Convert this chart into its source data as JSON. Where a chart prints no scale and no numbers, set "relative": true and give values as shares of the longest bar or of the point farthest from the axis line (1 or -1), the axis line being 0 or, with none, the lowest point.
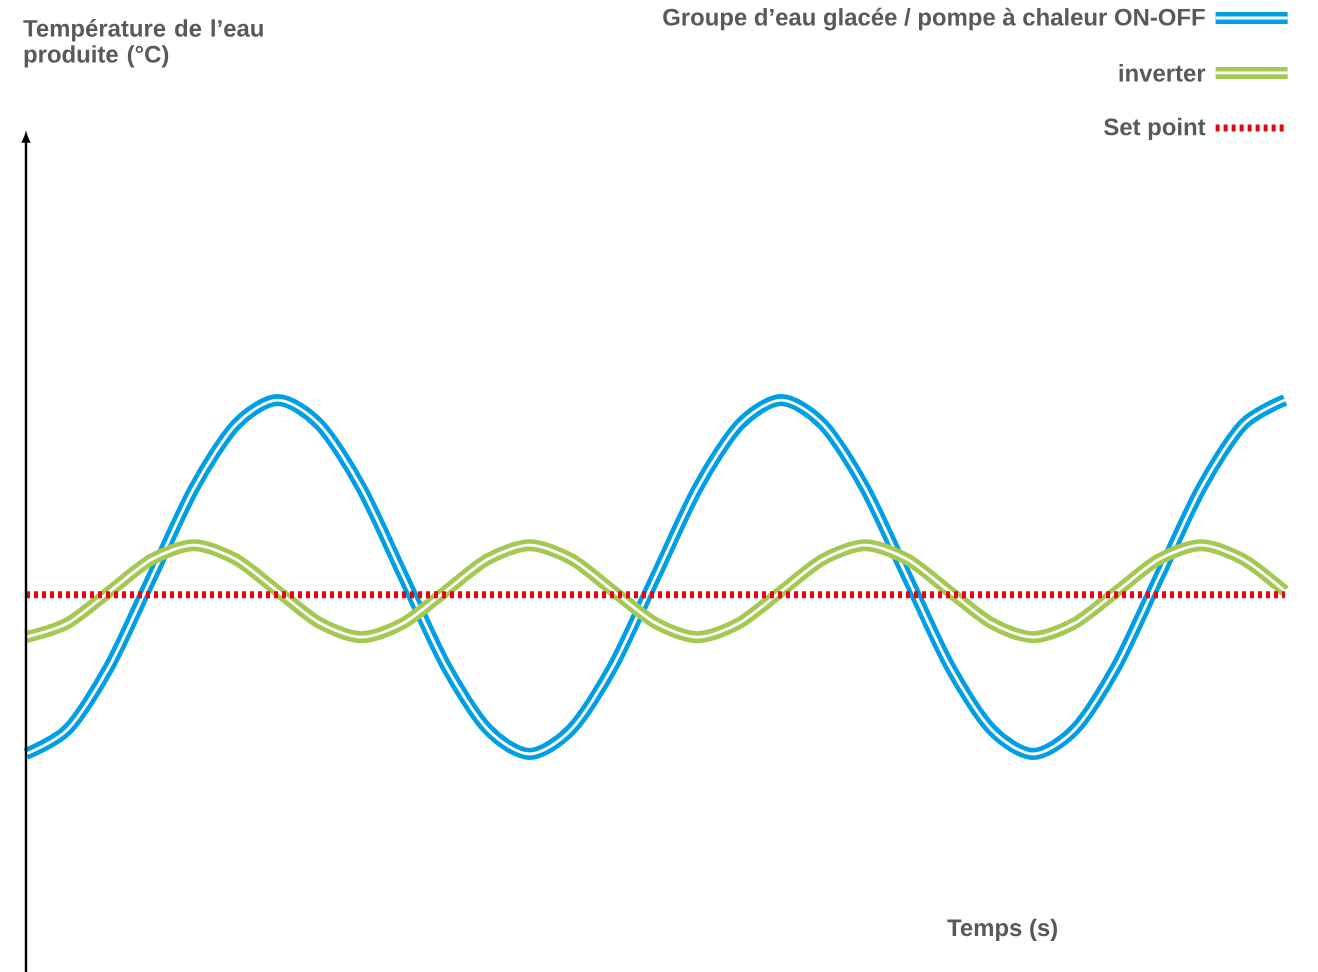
{
  "chart_data": {
    "type": "line",
    "relative": true,
    "annotations": [
      "Température de l’eau produite (°C)",
      "Temps (s)"
    ],
    "categories": [
      null,
      null,
      null,
      null,
      null,
      null,
      null,
      null,
      null,
      null,
      null,
      null,
      null,
      null,
      null,
      null,
      null,
      null,
      null,
      null,
      null,
      null,
      null,
      null,
      null,
      null,
      null,
      null,
      null,
      null,
      null
    ],
    "series": [
      {
        "name": "Groupe d’eau glacée / pompe à chaleur ON-OFF",
        "color": "#009fe3",
        "values": [
          0,
          0.07,
          0.25,
          0.5,
          0.75,
          0.93,
          1,
          0.93,
          0.75,
          0.5,
          0.25,
          0.07,
          0,
          0.07,
          0.25,
          0.5,
          0.75,
          0.93,
          1,
          0.93,
          0.75,
          0.5,
          0.25,
          0.07,
          0,
          0.07,
          0.25,
          0.5,
          0.75,
          0.93,
          1
        ]
      },
      {
        "name": "inverter",
        "color": "#a5c852",
        "values": [
          0.33,
          0.37,
          0.46,
          0.55,
          0.59,
          0.55,
          0.46,
          0.37,
          0.33,
          0.37,
          0.46,
          0.55,
          0.59,
          0.55,
          0.46,
          0.37,
          0.33,
          0.37,
          0.46,
          0.55,
          0.59,
          0.55,
          0.46,
          0.37,
          0.33,
          0.37,
          0.46,
          0.55,
          0.59,
          0.55,
          0.46
        ]
      }
    ],
    "ref_lines": [
      {
        "axis": "y",
        "value": 0.45,
        "label": "Set point",
        "color": "#e30613",
        "line_style": "dotted"
      }
    ],
    "legend": "top right",
    "marker": "none",
    "line_style": "solid"
  }
}
